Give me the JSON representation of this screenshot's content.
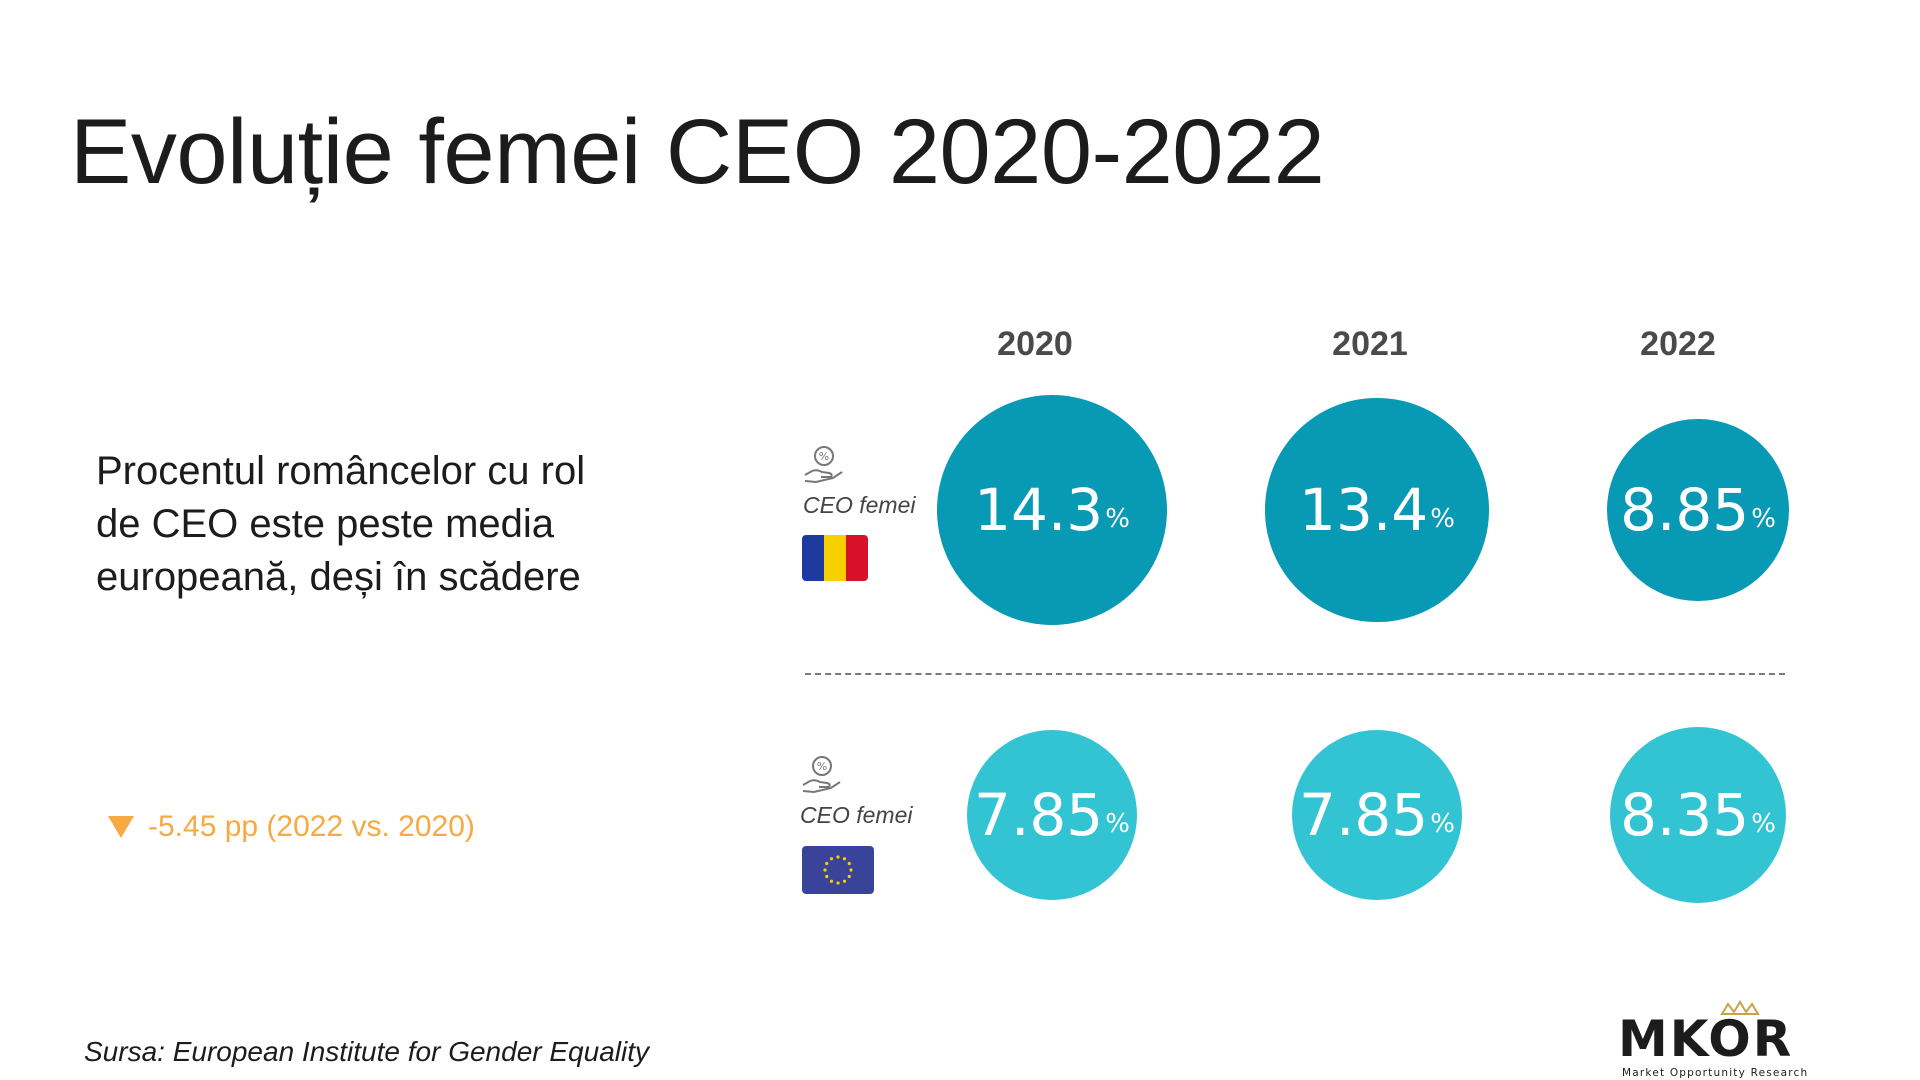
{
  "title": "Evoluție femei CEO 2020-2022",
  "subtitle": "Procentul româncelor cu rol de CEO este peste media europeană, deși în scădere",
  "delta_text": "-5.45 pp (2022 vs. 2020)",
  "source": "Sursa: European Institute for Gender Equality",
  "row_label": "CEO femei",
  "percent_sign": "%",
  "logo": {
    "name": "MKOR",
    "tagline": "Market Opportunity Research"
  },
  "colors": {
    "romania": "#0899b5",
    "europe": "#33c4d4",
    "delta": "#f7a942",
    "accent": "#c9a24a"
  },
  "chart_data": {
    "type": "bubble",
    "categories": [
      "2020",
      "2021",
      "2022"
    ],
    "series": [
      {
        "name": "România",
        "values": [
          14.3,
          13.4,
          8.85
        ],
        "labels": [
          "14.3",
          "13.4",
          "8.85"
        ]
      },
      {
        "name": "UE",
        "values": [
          7.85,
          7.85,
          8.35
        ],
        "labels": [
          "7.85",
          "7.85",
          "8.35"
        ]
      }
    ],
    "unit": "%"
  }
}
